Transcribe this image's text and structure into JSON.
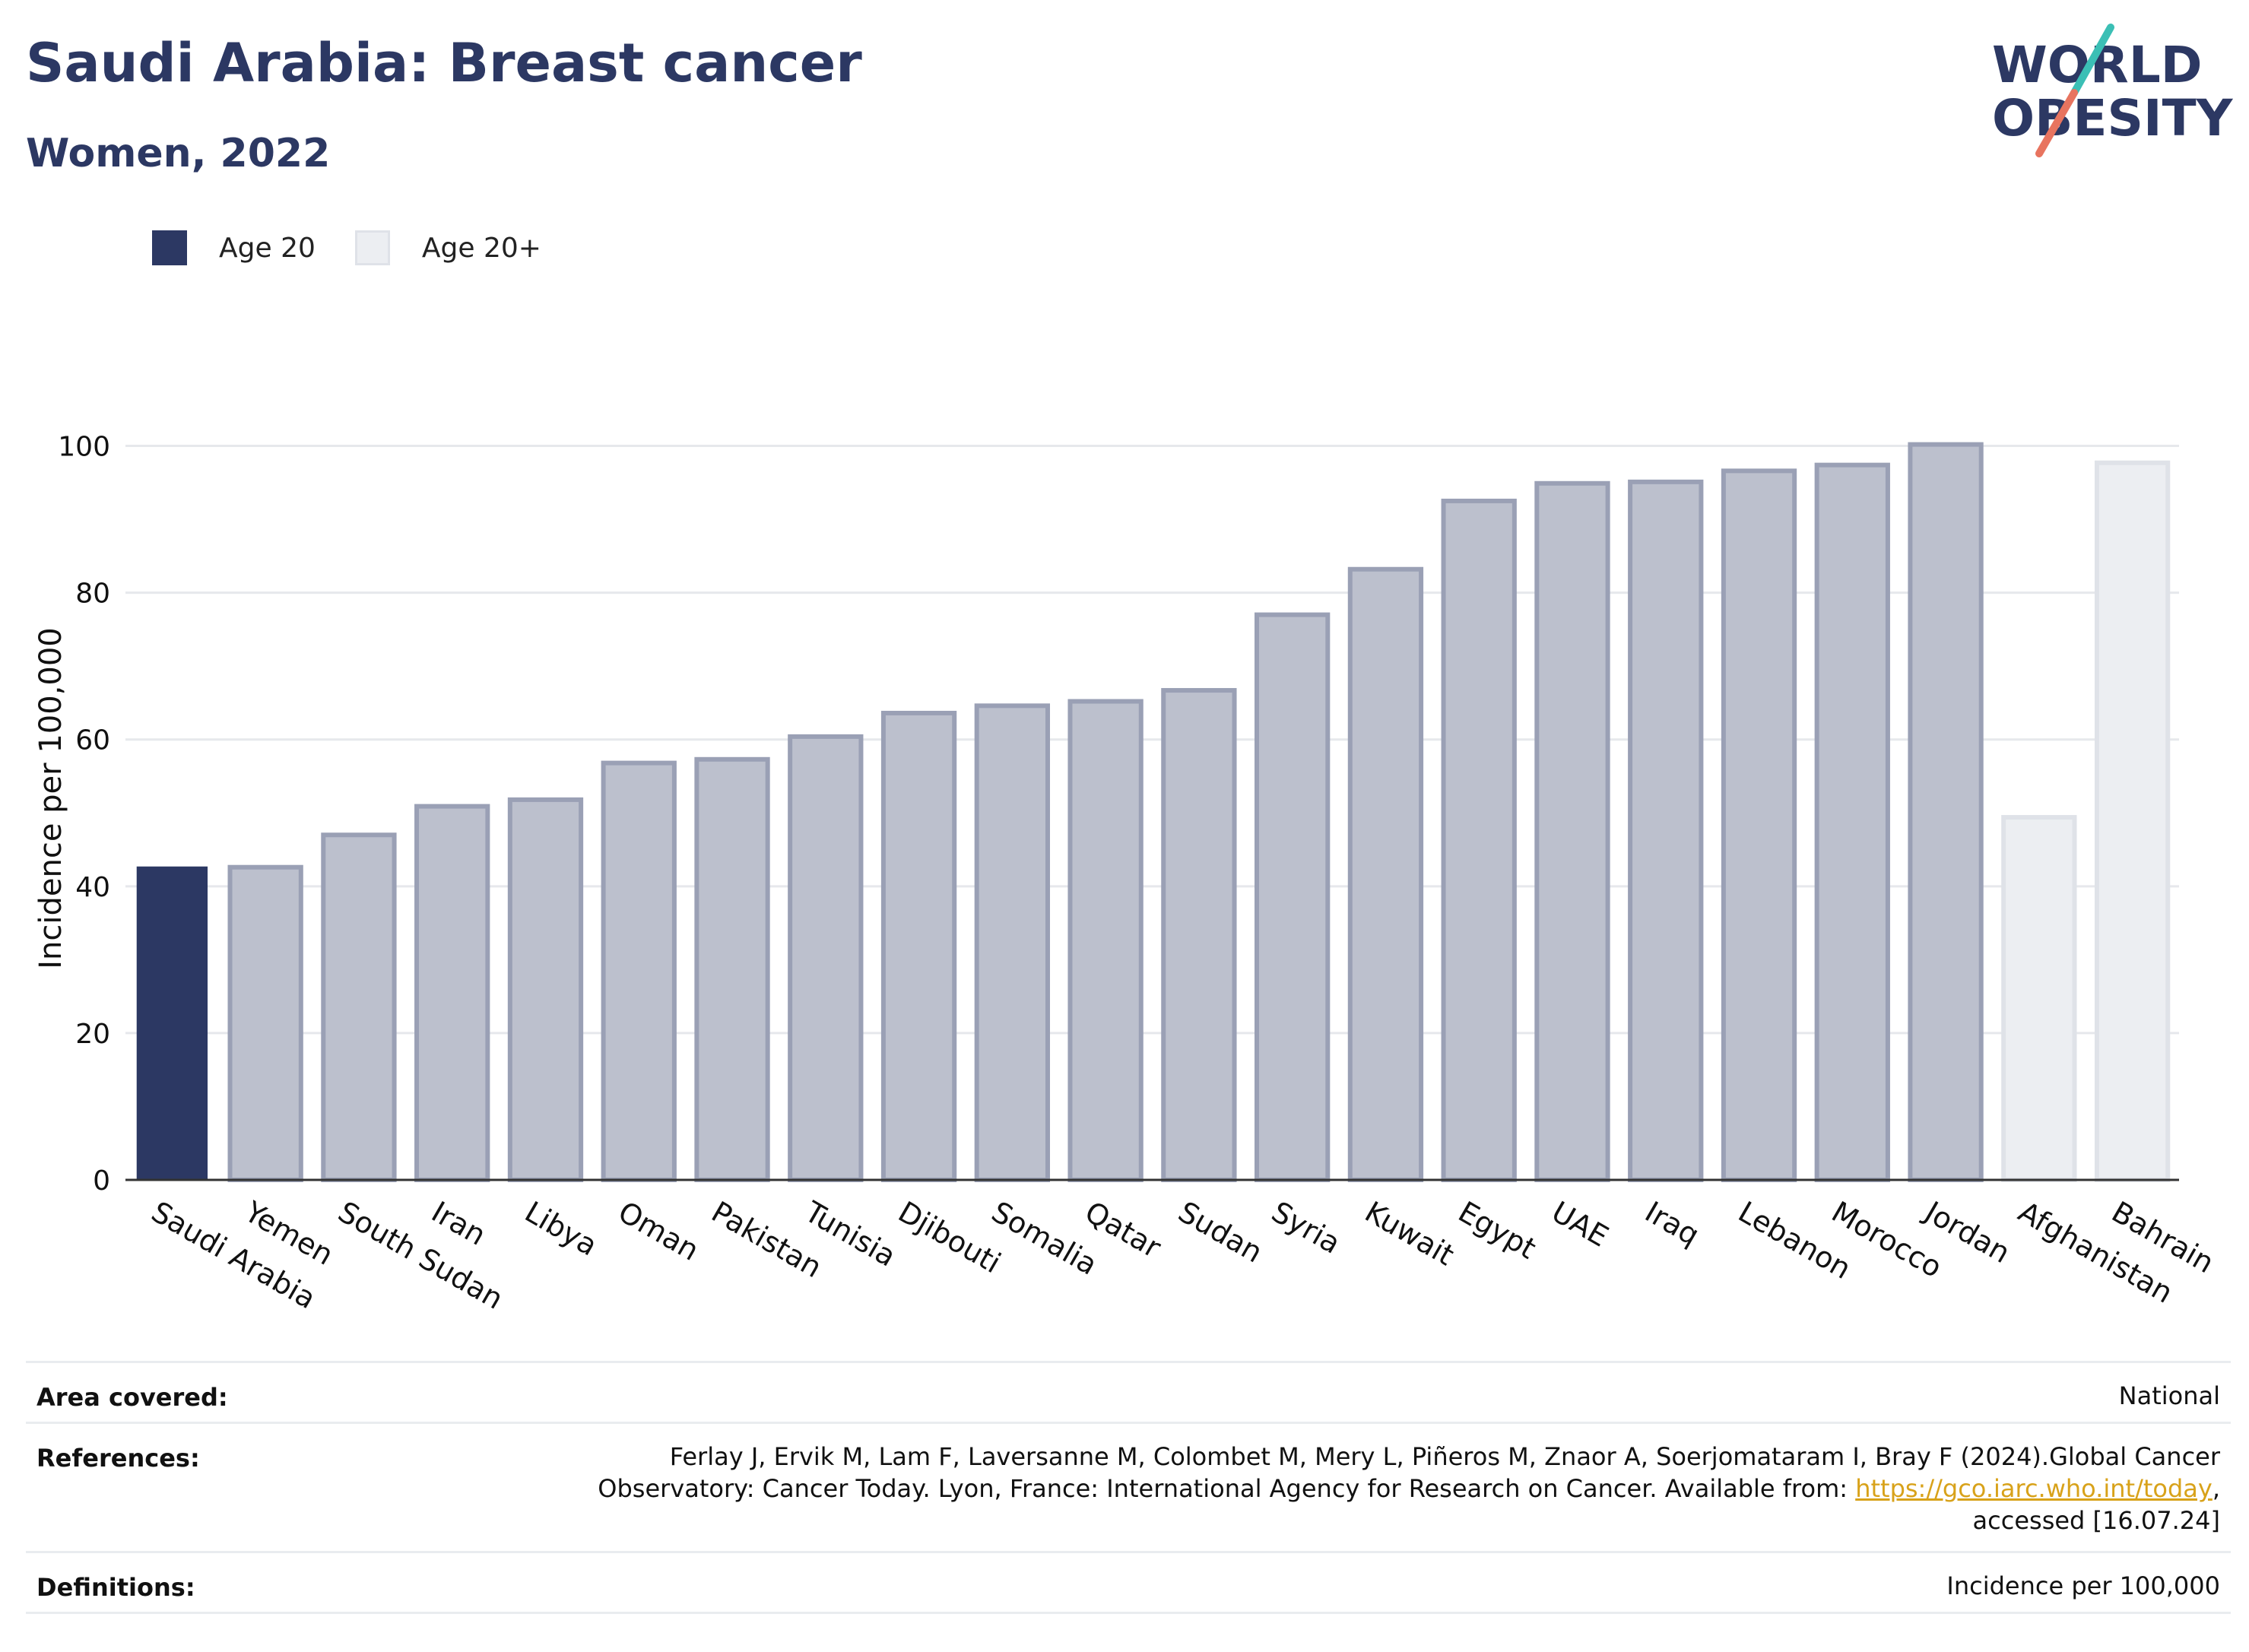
{
  "header": {
    "title": "Saudi Arabia: Breast cancer",
    "subtitle": "Women, 2022"
  },
  "logo": {
    "line1": "WORLD",
    "line2": "OBESITY",
    "colors": {
      "text": "#2c3863",
      "slash_teal": "#3bbfb5",
      "slash_coral": "#e8745f"
    }
  },
  "legend": {
    "items": [
      {
        "label": "Age 20",
        "color": "#2c3863"
      },
      {
        "label": "Age 20+",
        "color": "#eceef2"
      }
    ]
  },
  "chart_data": {
    "type": "bar",
    "ylabel": "Incidence per 100,000",
    "xlabel": "",
    "ylim": [
      0,
      110
    ],
    "yticks": [
      0,
      20,
      40,
      60,
      80,
      100
    ],
    "grid": true,
    "categories": [
      "Saudi Arabia",
      "Yemen",
      "South Sudan",
      "Iran",
      "Libya",
      "Oman",
      "Pakistan",
      "Tunisia",
      "Djibouti",
      "Somalia",
      "Qatar",
      "Sudan",
      "Syria",
      "Kuwait",
      "Egypt",
      "UAE",
      "Iraq",
      "Lebanon",
      "Morocco",
      "Jordan",
      "Afghanistan",
      "Bahrain"
    ],
    "values": [
      42.7,
      42.6,
      47.0,
      50.9,
      51.8,
      56.8,
      57.3,
      60.4,
      63.6,
      64.6,
      65.2,
      66.7,
      77.0,
      83.2,
      92.5,
      94.9,
      95.1,
      96.6,
      97.4,
      100.2,
      49.4,
      97.7
    ],
    "group": [
      "Age 20",
      "Age 20+",
      "Age 20+",
      "Age 20+",
      "Age 20+",
      "Age 20+",
      "Age 20+",
      "Age 20+",
      "Age 20+",
      "Age 20+",
      "Age 20+",
      "Age 20+",
      "Age 20+",
      "Age 20+",
      "Age 20+",
      "Age 20+",
      "Age 20+",
      "Age 20+",
      "Age 20+",
      "Age 20+",
      "Age 20+",
      "Age 20+"
    ],
    "bar_styles": [
      "highlight",
      "regional",
      "regional",
      "regional",
      "regional",
      "regional",
      "regional",
      "regional",
      "regional",
      "regional",
      "regional",
      "regional",
      "regional",
      "regional",
      "regional",
      "regional",
      "regional",
      "regional",
      "regional",
      "regional",
      "light",
      "light"
    ],
    "colors": {
      "highlight": "#2c3863",
      "regional_fill": "#bcc0cd",
      "regional_stroke": "#9aa0b5",
      "light_fill": "#eceef2",
      "light_stroke": "#dfe2e8",
      "grid": "#e6e8ec",
      "axis": "#333333"
    }
  },
  "info": {
    "area_key": "Area covered:",
    "area_val": "National",
    "ref_key": "References:",
    "ref_line1": "Ferlay J, Ervik M, Lam F, Laversanne M, Colombet M, Mery L, Piñeros M, Znaor A, Soerjomataram I, Bray F (2024).Global Cancer",
    "ref_line2_pre": "Observatory: Cancer Today. Lyon, France: International Agency for Research on Cancer. Available from: ",
    "ref_link": "https://gco.iarc.who.int/today",
    "ref_line2_post": ",",
    "ref_line3": "accessed [16.07.24]",
    "def_key": "Definitions:",
    "def_val": "Incidence per 100,000"
  }
}
